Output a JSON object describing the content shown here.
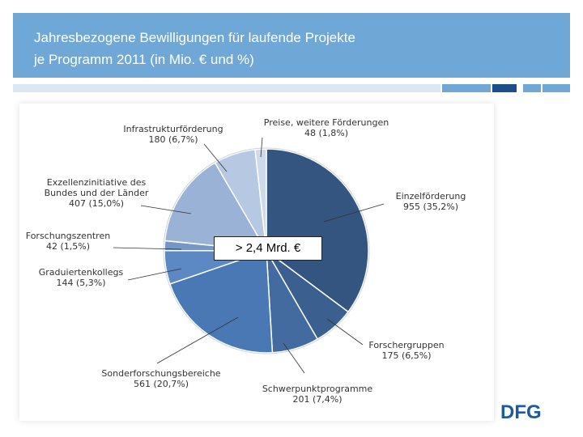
{
  "slide": {
    "title_line1": "Jahresbezogene Bewilligungen für laufende Projekte",
    "title_line2": "je Programm 2011 (in Mio. € und %)",
    "center_label": "> 2,4 Mrd. €",
    "logo_text": "DFG"
  },
  "colors": {
    "header": "#6fa8d6",
    "stripes": [
      "#dbe8f4",
      "#6fa8d6",
      "#1a4f8a",
      "#6fa8d6",
      "#6fa8d6"
    ]
  },
  "chart_data": {
    "type": "pie",
    "title": "Jahresbezogene Bewilligungen für laufende Projekte je Programm 2011 (in Mio. € und %)",
    "total_label": "> 2,4 Mrd. €",
    "unit": "Mio. €",
    "start": "12 o'clock, clockwise",
    "slices": [
      {
        "name": "Einzelförderung",
        "value": 955,
        "value_label": "955 (35,2%)",
        "percent": 35.2,
        "color": "#34557f",
        "label_side": "right"
      },
      {
        "name": "Forschergruppen",
        "value": 175,
        "value_label": "175 (6,5%)",
        "percent": 6.5,
        "color": "#3b5f8e",
        "label_side": "right"
      },
      {
        "name": "Schwerpunktprogramme",
        "value": 201,
        "value_label": "201 (7,4%)",
        "percent": 7.4,
        "color": "#436ba0",
        "label_side": "bottom"
      },
      {
        "name": "Sonderforschungsbereiche",
        "value": 561,
        "value_label": "561 (20,7%)",
        "percent": 20.7,
        "color": "#4a78b4",
        "label_side": "bottom-left"
      },
      {
        "name": "Graduiertenkollegs",
        "value": 144,
        "value_label": "144 (5,3%)",
        "percent": 5.3,
        "color": "#5c89c4",
        "label_side": "left"
      },
      {
        "name": "Forschungszentren",
        "value": 42,
        "value_label": "42 (1,5%)",
        "percent": 1.5,
        "color": "#7696c8",
        "label_side": "left"
      },
      {
        "name": "Exzellenzinitiative des Bundes und der Länder",
        "name_lines": [
          "Exzellenzinitiative des",
          "Bundes und der Länder"
        ],
        "value": 407,
        "value_label": "407 (15,0%)",
        "percent": 15.0,
        "color": "#9ab2d6",
        "label_side": "left"
      },
      {
        "name": "Infrastrukturförderung",
        "value": 180,
        "value_label": "180 (6,7%)",
        "percent": 6.7,
        "color": "#b7c8e3",
        "label_side": "top-left"
      },
      {
        "name": "Preise, weitere Förderungen",
        "value": 48,
        "value_label": "48 (1,8%)",
        "percent": 1.8,
        "color": "#cfd9ec",
        "label_side": "top"
      }
    ]
  }
}
